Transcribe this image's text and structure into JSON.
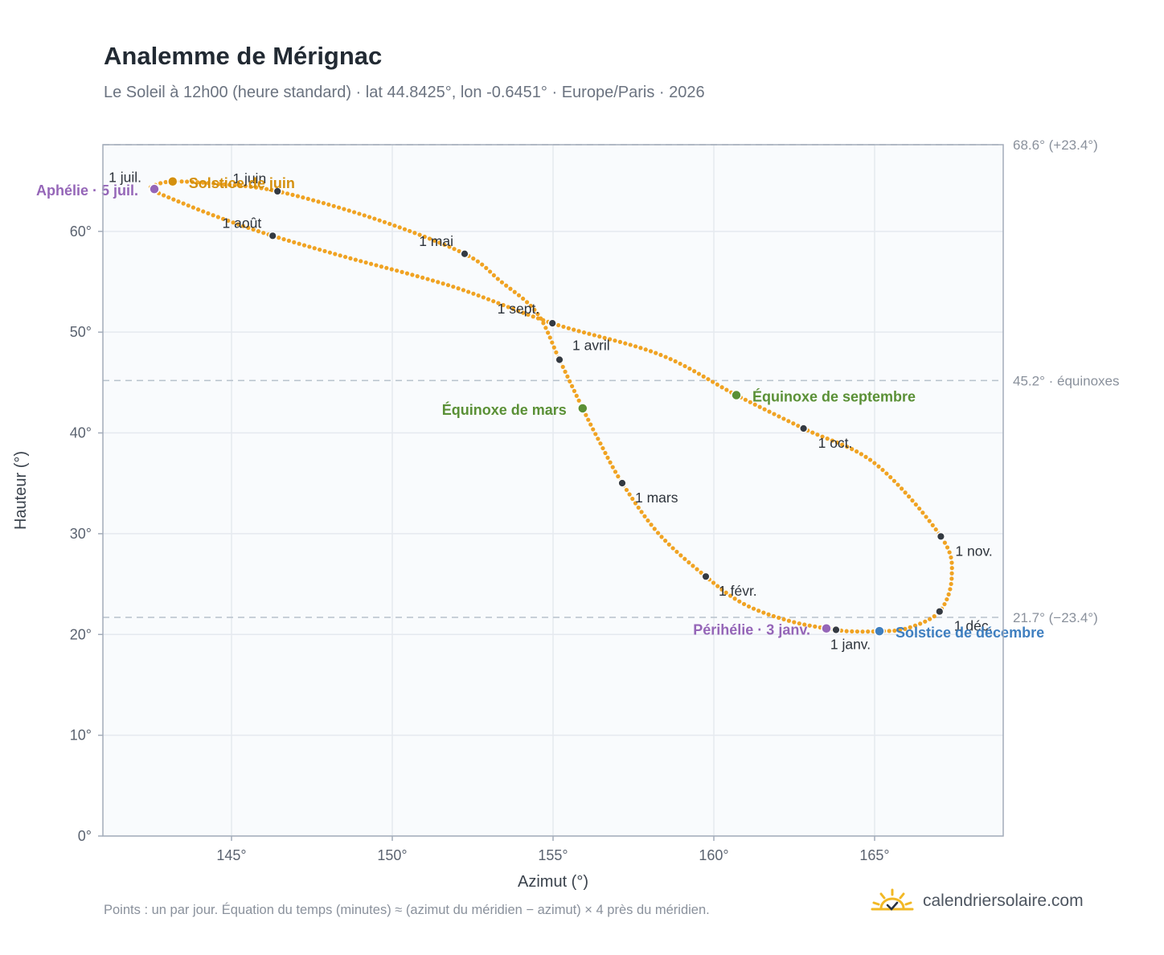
{
  "header": {
    "title": "Analemme de Mérignac",
    "subtitle": "Le Soleil à 12h00 (heure standard) · lat 44.8425°, lon -0.6451° · Europe/Paris · 2026"
  },
  "footer": {
    "note": "Points : un par jour. Équation du temps (minutes) ≈ (azimut du méridien − azimut) × 4 près du méridien.",
    "brand": "calendriersolaire.com",
    "brand_icon": "sun-logo-icon"
  },
  "colors": {
    "curve": "#f0a323",
    "month_dot": "#343a42",
    "solstice_june": "#d4900e",
    "solstice_december": "#3f7fc0",
    "equinox": "#5a9036",
    "apsis": "#9566b8",
    "reference_line": "#b8c2cc",
    "plot_bg": "#f9fbfd",
    "frame": "#a3acba"
  },
  "chart_data": {
    "type": "scatter",
    "xlabel": "Azimut (°)",
    "ylabel": "Hauteur (°)",
    "xlim": [
      141,
      169
    ],
    "ylim": [
      0,
      68.6
    ],
    "grid": true,
    "x_ticks": [
      145,
      150,
      155,
      160,
      165
    ],
    "y_ticks": [
      0,
      10,
      20,
      30,
      40,
      50,
      60
    ],
    "x_tick_labels": [
      "145°",
      "150°",
      "155°",
      "160°",
      "165°"
    ],
    "y_tick_labels": [
      "0°",
      "10°",
      "20°",
      "30°",
      "40°",
      "50°",
      "60°"
    ],
    "reference_lines": [
      {
        "y": 68.6,
        "label": "68.6° (+23.4°)"
      },
      {
        "y": 45.2,
        "label": "45.2° · équinoxes"
      },
      {
        "y": 21.7,
        "label": "21.7° (−23.4°)"
      }
    ],
    "series": [
      {
        "points_per": "day",
        "points": [
          [
            163.8,
            20.46
          ],
          [
            162.4,
            21.3
          ],
          [
            160.95,
            23.0
          ],
          [
            159.75,
            25.75
          ],
          [
            158.3,
            29.95
          ],
          [
            157.15,
            35.02
          ],
          [
            156.4,
            39.4
          ],
          [
            155.92,
            42.44
          ],
          [
            155.2,
            47.26
          ],
          [
            154.5,
            51.9
          ],
          [
            153.35,
            55.1
          ],
          [
            152.25,
            57.77
          ],
          [
            149.5,
            61.2
          ],
          [
            146.43,
            63.98
          ],
          [
            144.5,
            64.73
          ],
          [
            143.17,
            64.95
          ],
          [
            142.6,
            64.55
          ],
          [
            142.55,
            64.1
          ],
          [
            143.4,
            62.9
          ],
          [
            144.6,
            61.4
          ],
          [
            146.28,
            59.56
          ],
          [
            148.5,
            57.5
          ],
          [
            151.9,
            54.5
          ],
          [
            154.98,
            50.88
          ],
          [
            158.3,
            47.8
          ],
          [
            160.7,
            43.75
          ],
          [
            162.79,
            40.44
          ],
          [
            165.0,
            37.0
          ],
          [
            167.06,
            29.73
          ],
          [
            167.4,
            25.8
          ],
          [
            167.02,
            22.28
          ],
          [
            166.0,
            20.6
          ],
          [
            165.15,
            20.33
          ],
          [
            164.4,
            20.3
          ],
          [
            163.8,
            20.46
          ]
        ]
      }
    ],
    "month_markers": [
      {
        "label": "1 janv.",
        "x": 163.8,
        "y": 20.46,
        "anchor": "below"
      },
      {
        "label": "1 févr.",
        "x": 159.75,
        "y": 25.75,
        "anchor": "right"
      },
      {
        "label": "1 mars",
        "x": 157.15,
        "y": 35.02,
        "anchor": "right"
      },
      {
        "label": "1 avril",
        "x": 155.2,
        "y": 47.26,
        "anchor": "above-right"
      },
      {
        "label": "1 mai",
        "x": 152.25,
        "y": 57.77,
        "anchor": "above-left"
      },
      {
        "label": "1 juin",
        "x": 146.43,
        "y": 63.98,
        "anchor": "above-left"
      },
      {
        "label": "1 juil.",
        "x": 142.55,
        "y": 64.1,
        "anchor": "above-left"
      },
      {
        "label": "1 août",
        "x": 146.28,
        "y": 59.56,
        "anchor": "above-left"
      },
      {
        "label": "1 sept.",
        "x": 154.98,
        "y": 50.88,
        "anchor": "left"
      },
      {
        "label": "1 oct.",
        "x": 162.79,
        "y": 40.44,
        "anchor": "below-right"
      },
      {
        "label": "1 nov.",
        "x": 167.06,
        "y": 29.73,
        "anchor": "below-right"
      },
      {
        "label": "1 déc.",
        "x": 167.02,
        "y": 22.28,
        "anchor": "below-right"
      }
    ],
    "events": [
      {
        "label": "Solstice de juin",
        "x": 143.17,
        "y": 64.95,
        "color_key": "solstice_june",
        "side": "right"
      },
      {
        "label": "Aphélie · 5 juil.",
        "x": 142.6,
        "y": 64.2,
        "color_key": "apsis",
        "side": "left"
      },
      {
        "label": "Équinoxe de mars",
        "x": 155.92,
        "y": 42.44,
        "color_key": "equinox",
        "side": "left"
      },
      {
        "label": "Équinoxe de septembre",
        "x": 160.7,
        "y": 43.75,
        "color_key": "equinox",
        "side": "right"
      },
      {
        "label": "Périhélie · 3 janv.",
        "x": 163.5,
        "y": 20.6,
        "color_key": "apsis",
        "side": "left"
      },
      {
        "label": "Solstice de décembre",
        "x": 165.15,
        "y": 20.33,
        "color_key": "solstice_december",
        "side": "right"
      }
    ]
  }
}
